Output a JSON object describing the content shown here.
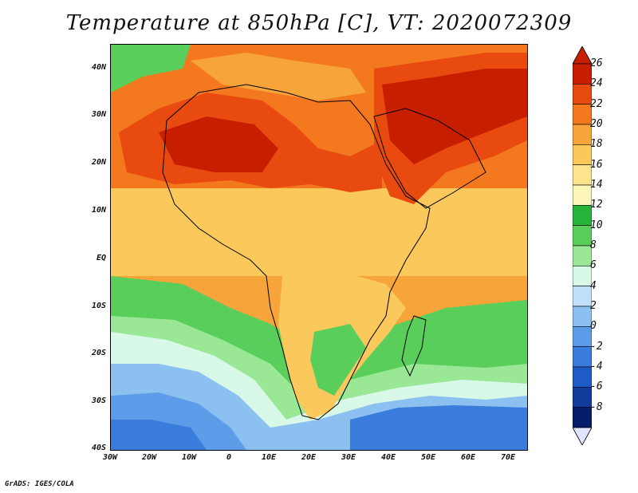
{
  "title": "Temperature at 850hPa [C], VT: 2020072309",
  "credit": "GrADS: IGES/COLA",
  "axes": {
    "lat_labels": [
      "40N",
      "30N",
      "20N",
      "10N",
      "EQ",
      "10S",
      "20S",
      "30S",
      "40S"
    ],
    "lon_labels": [
      "30W",
      "20W",
      "10W",
      "0",
      "10E",
      "20E",
      "30E",
      "40E",
      "50E",
      "60E",
      "70E"
    ]
  },
  "colorbar": {
    "ticks": [
      "26",
      "24",
      "22",
      "20",
      "18",
      "16",
      "14",
      "12",
      "10",
      "8",
      "6",
      "4",
      "2",
      "0",
      "-2",
      "-4",
      "-6",
      "-8"
    ],
    "colors": [
      "#c81e00",
      "#e84a10",
      "#f4781e",
      "#f7a43a",
      "#fbc85c",
      "#fde48c",
      "#fbf6b8",
      "#28b43a",
      "#5ace5a",
      "#9ae896",
      "#d8f8e8",
      "#bfe0f8",
      "#8cc0f0",
      "#5c9ce8",
      "#3a7cdc",
      "#1e5ac8",
      "#103c9c",
      "#081c6c"
    ]
  }
}
